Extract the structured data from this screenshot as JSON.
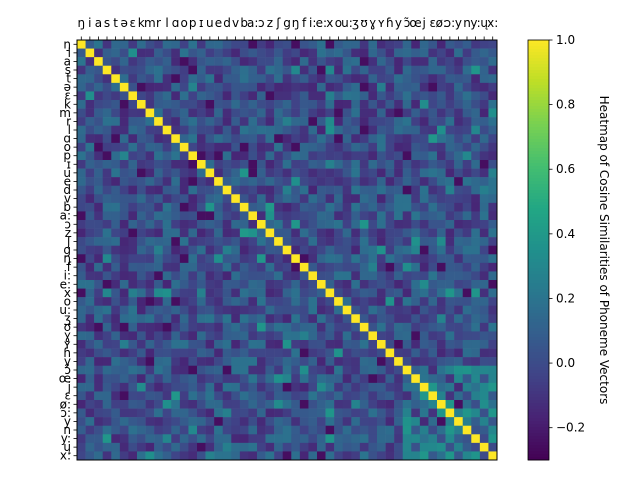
{
  "chart_data": {
    "type": "heatmap",
    "title": "",
    "colorbar_label": "Heatmap of Cosine Similarities of Phoneme Vectors",
    "colormap": "viridis",
    "clim": [
      -0.3,
      1.0
    ],
    "colorbar_ticks": [
      "−0.2",
      "0.0",
      "0.2",
      "0.4",
      "0.6",
      "0.8",
      "1.0"
    ],
    "colorbar_tick_values": [
      -0.2,
      0.0,
      0.2,
      0.4,
      0.6,
      0.8,
      1.0
    ],
    "x_tick_position": "top",
    "labels": [
      "ŋ",
      "i",
      "a",
      "s",
      "t",
      "ə",
      "ɛ",
      "k",
      "m",
      "r",
      "l",
      "ɑ",
      "o",
      "p",
      "ɪ",
      "u",
      "e",
      "d",
      "v",
      "b",
      "a:",
      "ɔ",
      "z",
      "ʃ",
      "g",
      "ŋ",
      "f",
      "i:",
      "e:",
      "x",
      "o",
      "u:",
      "ʒ",
      "ʊ",
      "ɣ",
      "ʏ",
      "ɦ",
      "y",
      "ɔ̃",
      "œ",
      "j",
      "ɛ",
      "ø:",
      "ɔ:",
      "y",
      "n",
      "y:",
      "ų",
      "x:"
    ],
    "diagonal_value": 1.0,
    "off_diagonal_range": [
      -0.3,
      0.45
    ],
    "note": "Square cosine-similarity matrix; diagonal equals 1.0, off-diagonal values mostly between about -0.2 and 0.2, with a few up to about 0.4 (e.g. among long vowels near the lower-right)."
  }
}
